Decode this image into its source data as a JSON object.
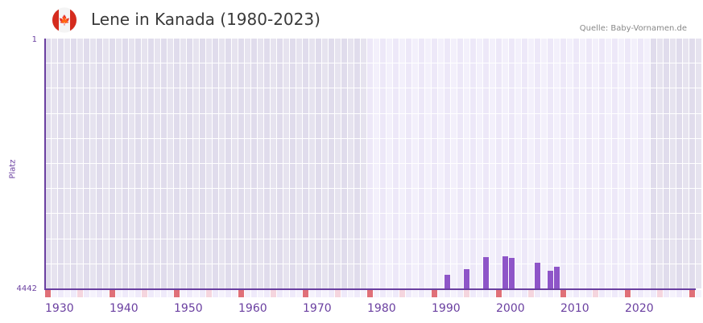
{
  "header": {
    "title": "Lene in Kanada (1980-2023)",
    "source": "Quelle: Baby-Vornamen.de",
    "flag_icon": "canada-flag-icon"
  },
  "colors": {
    "bar": "#8e55c8",
    "axis": "#6a3fa0",
    "decade_marker": "#e07078",
    "half_decade_marker": "#f5d5de",
    "active_bg": "#efeafa",
    "inactive_bg": "#e3dfee"
  },
  "chart_data": {
    "type": "bar",
    "title": "Lene in Kanada (1980-2023)",
    "xlabel": "",
    "ylabel": "Platz",
    "y_ticks": [
      "1",
      "4442"
    ],
    "ylim": [
      4442,
      1
    ],
    "x_range": [
      1930,
      2030
    ],
    "x_ticks": [
      "1930",
      "1940",
      "1950",
      "1960",
      "1970",
      "1980",
      "1990",
      "2000",
      "2010",
      "2020"
    ],
    "highlighted_range": [
      1980,
      2023
    ],
    "categories": [
      "1992",
      "1995",
      "1998",
      "2001",
      "2002",
      "2006",
      "2008",
      "2009"
    ],
    "values": [
      4180,
      4080,
      3870,
      3855,
      3885,
      3970,
      4115,
      4040
    ],
    "grid": true,
    "legend": null
  }
}
